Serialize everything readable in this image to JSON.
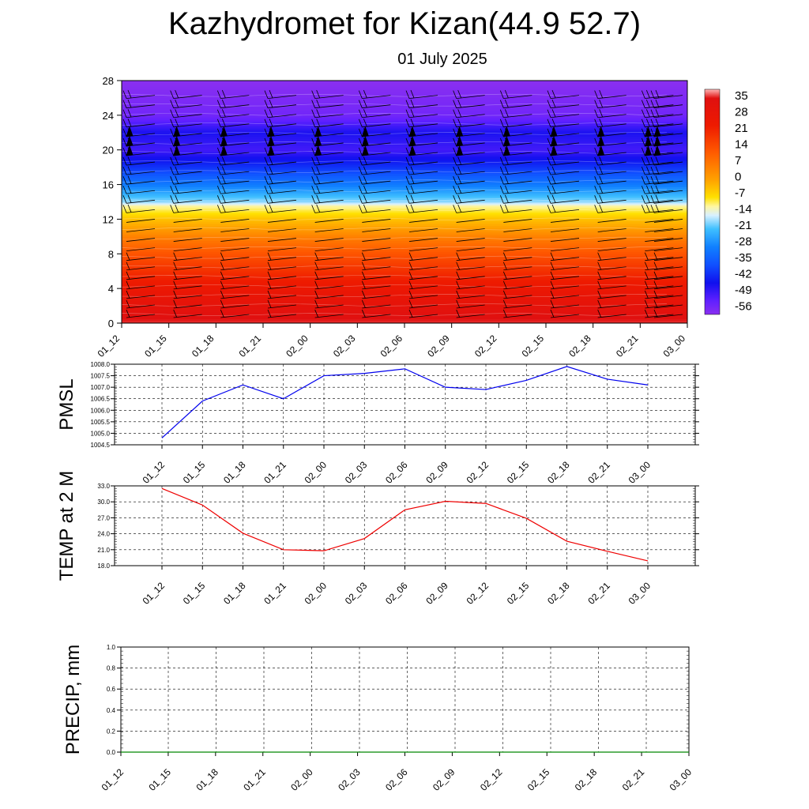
{
  "title": "Kazhydromet for Kizan(44.9 52.7)",
  "subtitle": "01 July 2025",
  "colors": {
    "pmsl_line": "#0000ee",
    "temp_line": "#ee0000",
    "precip_line": "#008800"
  },
  "chart_data": [
    {
      "type": "heatmap",
      "name": "cross-section",
      "title": "",
      "ylabel": "",
      "ylim": [
        0,
        28
      ],
      "yticks": [
        "0",
        "4",
        "8",
        "12",
        "16",
        "20",
        "24",
        "28"
      ],
      "categories": [
        "01_12",
        "01_15",
        "01_18",
        "01_21",
        "02_00",
        "02_03",
        "02_06",
        "02_09",
        "02_12",
        "02_15",
        "02_18",
        "02_21",
        "03_00"
      ],
      "colorbar": {
        "labels": [
          "35",
          "28",
          "21",
          "14",
          "7",
          "0",
          "-7",
          "-14",
          "-21",
          "-28",
          "-35",
          "-42",
          "-49",
          "-56"
        ],
        "range": [
          -60,
          38
        ]
      },
      "temperature_profile": {
        "levels": [
          0,
          2,
          4,
          6,
          8,
          10,
          12,
          13.5,
          14,
          16,
          18,
          20,
          22,
          24,
          26,
          28
        ],
        "values": [
          34,
          30,
          26,
          21,
          16,
          10,
          2,
          -7,
          -14,
          -28,
          -40,
          -50,
          -46,
          -56,
          -58,
          -60
        ]
      },
      "overlay": "wind barbs"
    },
    {
      "type": "line",
      "name": "pmsl",
      "ylabel": "PMSL",
      "ylim": [
        1004.5,
        1008.0
      ],
      "yticks": [
        "1004.5",
        "1005.0",
        "1005.5",
        "1006.0",
        "1006.5",
        "1007.0",
        "1007.5",
        "1008.0"
      ],
      "categories": [
        "01_12",
        "01_15",
        "01_18",
        "01_21",
        "02_00",
        "02_03",
        "02_06",
        "02_09",
        "02_12",
        "02_15",
        "02_18",
        "02_21",
        "03_00"
      ],
      "values": [
        1004.8,
        1006.4,
        1007.1,
        1006.5,
        1007.5,
        1007.6,
        1007.8,
        1007.0,
        1006.9,
        1007.3,
        1007.9,
        1007.35,
        1007.1
      ],
      "grid": true
    },
    {
      "type": "line",
      "name": "temp",
      "ylabel": "TEMP at 2 M",
      "ylim": [
        18.0,
        33.0
      ],
      "yticks": [
        "18.0",
        "21.0",
        "24.0",
        "27.0",
        "30.0",
        "33.0"
      ],
      "categories": [
        "01_12",
        "01_15",
        "01_18",
        "01_21",
        "02_00",
        "02_03",
        "02_06",
        "02_09",
        "02_12",
        "02_15",
        "02_18",
        "02_21",
        "03_00"
      ],
      "values": [
        32.5,
        29.4,
        24.1,
        21.0,
        20.8,
        23.1,
        28.5,
        30.1,
        29.7,
        26.9,
        22.6,
        20.7,
        18.9
      ],
      "grid": true
    },
    {
      "type": "line",
      "name": "precip",
      "ylabel": "PRECIP, mm",
      "ylim": [
        0.0,
        1.0
      ],
      "yticks": [
        "0.0",
        "0.2",
        "0.4",
        "0.6",
        "0.8",
        "1.0"
      ],
      "categories": [
        "01_12",
        "01_15",
        "01_18",
        "01_21",
        "02_00",
        "02_03",
        "02_06",
        "02_09",
        "02_12",
        "02_15",
        "02_18",
        "02_21",
        "03_00"
      ],
      "values": [
        0,
        0,
        0,
        0,
        0,
        0,
        0,
        0,
        0,
        0,
        0,
        0,
        0
      ],
      "grid": true
    }
  ]
}
